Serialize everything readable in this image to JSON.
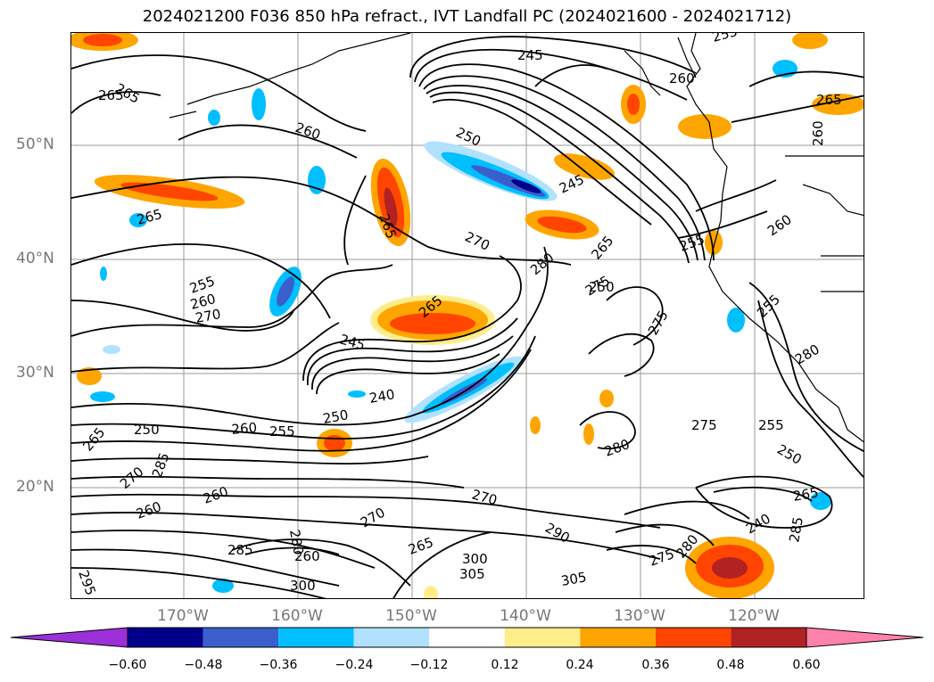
{
  "title": "2024021200 F036 850 hPa refract., IVT Landfall PC (2024021600 - 2024021712)",
  "lat_labels": [
    "50°N",
    "40°N",
    "30°N",
    "20°N"
  ],
  "lon_labels": [
    "170°W",
    "160°W",
    "150°W",
    "140°W",
    "130°W",
    "120°W"
  ],
  "contour_labels": [
    "265",
    "265",
    "260",
    "265",
    "255",
    "260",
    "270",
    "265",
    "250",
    "245",
    "245",
    "260",
    "255",
    "265",
    "270",
    "280",
    "275",
    "265",
    "265",
    "245",
    "240",
    "250",
    "260",
    "255",
    "250",
    "265",
    "260",
    "255",
    "250",
    "280",
    "275",
    "270",
    "285",
    "270",
    "260",
    "240",
    "255",
    "250",
    "255",
    "260",
    "265",
    "260",
    "280",
    "275",
    "285",
    "290",
    "300",
    "305",
    "305",
    "275",
    "280",
    "285",
    "280",
    "270",
    "265",
    "260",
    "295",
    "300"
  ],
  "colorbar": {
    "ticks": [
      "−0.60",
      "−0.48",
      "−0.36",
      "−0.24",
      "−0.12",
      "0.12",
      "0.24",
      "0.36",
      "0.48",
      "0.60"
    ],
    "colors": [
      "#9b30d8",
      "#00008b",
      "#3a5fcd",
      "#00bfff",
      "#b0e2ff",
      "#ffffff",
      "#ffec8b",
      "#ffa500",
      "#ff4500",
      "#b22222",
      "#ff82ab"
    ]
  },
  "legend_colors": {
    "neg_strong": "#00008b",
    "neg_mid": "#3a5fcd",
    "neg_light": "#00bfff",
    "neg_pale": "#b0e2ff",
    "pos_pale": "#ffec8b",
    "pos_light": "#ffa500",
    "pos_mid": "#ff4500",
    "pos_strong": "#b22222"
  }
}
